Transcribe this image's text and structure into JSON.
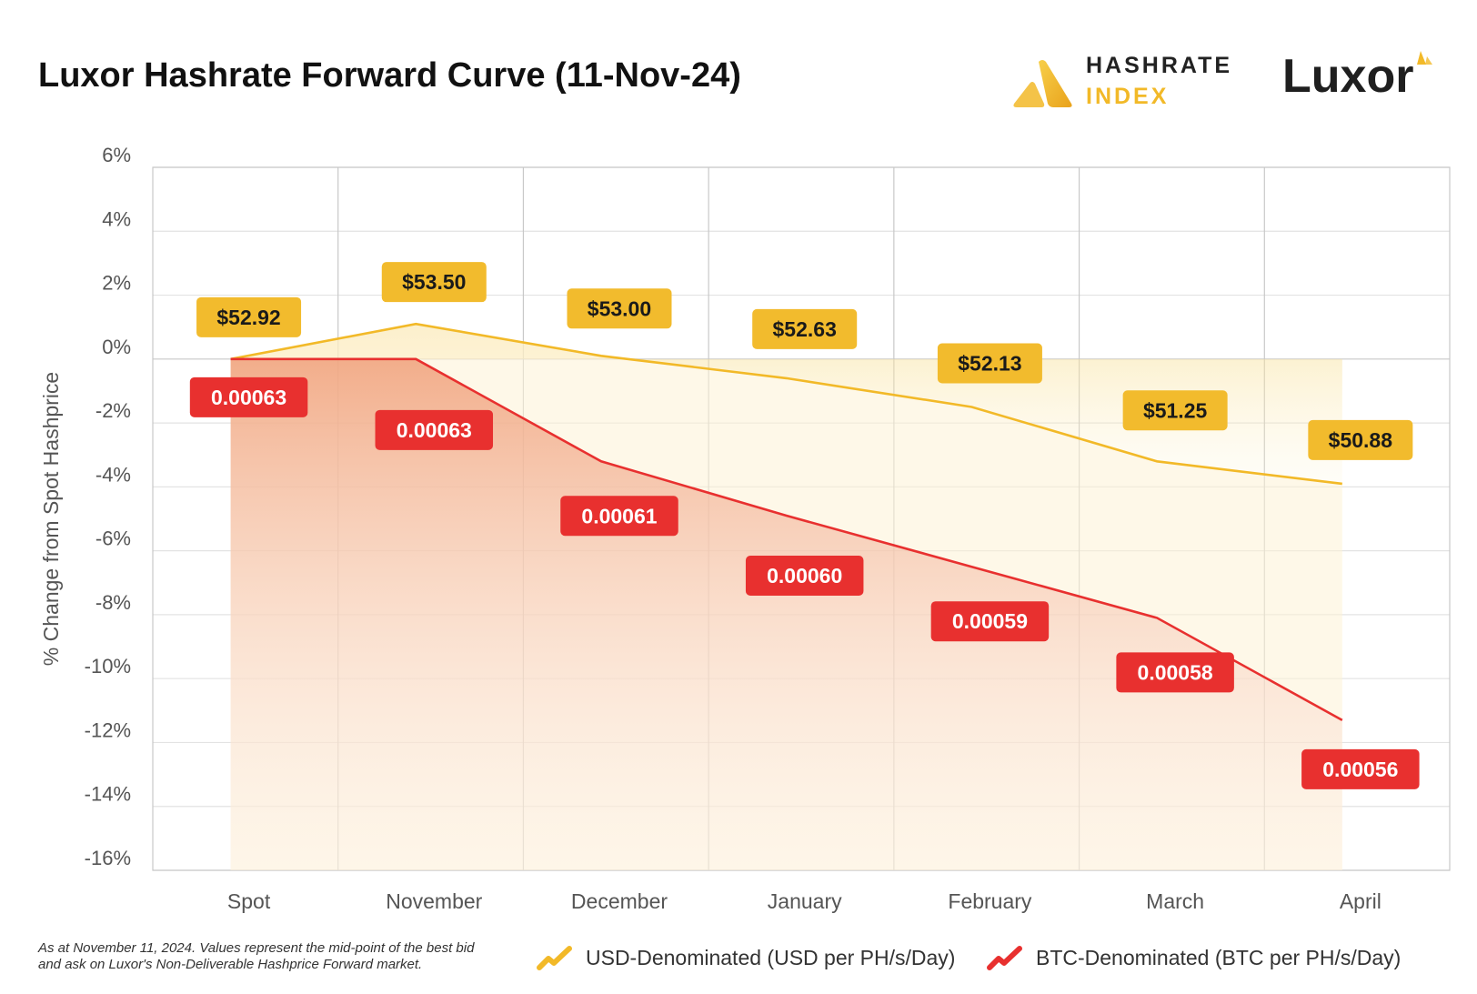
{
  "header": {
    "title": "Luxor Hashrate Forward Curve (11-Nov-24)",
    "brand_hashrate_line1": "HASHRATE",
    "brand_hashrate_line2": "INDEX",
    "brand_luxor": "Luxor",
    "icons": [
      "hashrate-index-logo-icon",
      "luxor-logo-icon"
    ]
  },
  "chart_data": {
    "type": "area",
    "ylabel": "% Change from Spot Hashprice",
    "xlabel": "",
    "ylim": [
      -16,
      6
    ],
    "yticks": [
      6,
      4,
      2,
      0,
      -2,
      -4,
      -6,
      -8,
      -10,
      -12,
      -14,
      -16
    ],
    "ytick_labels": [
      "6%",
      "4%",
      "2%",
      "0%",
      "-2%",
      "-4%",
      "-6%",
      "-8%",
      "-10%",
      "-12%",
      "-14%",
      "-16%"
    ],
    "categories": [
      "Spot",
      "November",
      "December",
      "January",
      "February",
      "March",
      "April"
    ],
    "grid": true,
    "legend_position": "bottom-center",
    "series": [
      {
        "name": "USD-Denominated (USD per PH/s/Day)",
        "color": "#f2b928",
        "values": [
          0,
          1.1,
          0.1,
          -0.6,
          -1.5,
          -3.2,
          -3.9
        ],
        "labels": [
          "$52.92",
          "$53.50",
          "$53.00",
          "$52.63",
          "$52.13",
          "$51.25",
          "$50.88"
        ]
      },
      {
        "name": "BTC-Denominated (BTC per PH/s/Day)",
        "color": "#e8302f",
        "values": [
          0,
          0,
          -3.2,
          -4.9,
          -6.5,
          -8.1,
          -11.3
        ],
        "labels": [
          "0.00063",
          "0.00063",
          "0.00061",
          "0.00060",
          "0.00059",
          "0.00058",
          "0.00056"
        ]
      }
    ]
  },
  "footnote": {
    "text": "As at November 11, 2024. Values represent the mid-point of the best bid and ask on Luxor's Non-Deliverable Hashprice Forward market."
  },
  "legend": {
    "usd_label": "USD-Denominated (USD per PH/s/Day)",
    "btc_label": "BTC-Denominated (BTC per PH/s/Day)",
    "usd_icon": "trend-line-icon",
    "btc_icon": "trend-line-icon"
  }
}
